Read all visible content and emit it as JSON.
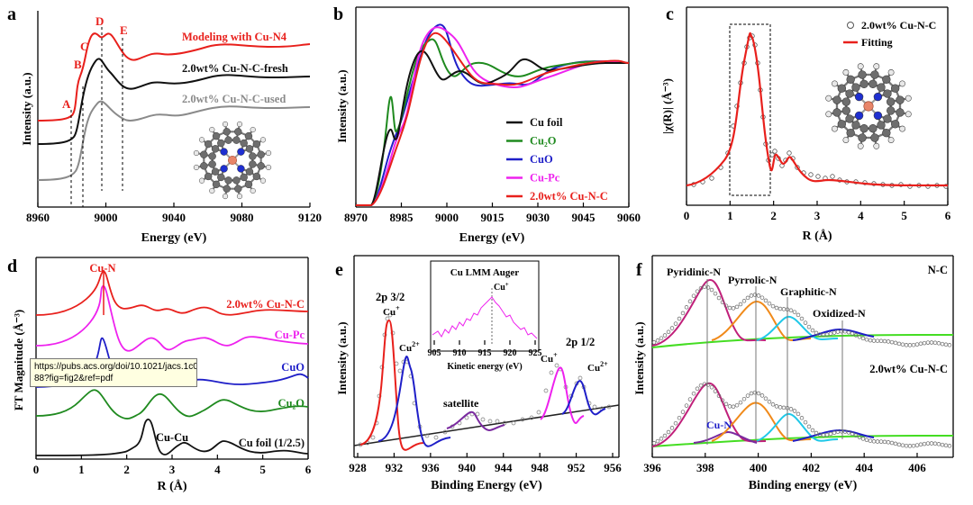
{
  "colors": {
    "red": "#e8201c",
    "black": "#111111",
    "gray": "#808080",
    "green": "#1f8a1f",
    "blue": "#1f1fc8",
    "magenta": "#ee22ee",
    "orange": "#f08a1a",
    "cyan": "#20c8e8",
    "lime": "#44dd22",
    "purple": "#7a2aa0",
    "fitPink": "#c0207a"
  },
  "tooltip": {
    "line1": "https://pubs.acs.org/doi/10.1021/jacs.1c037",
    "line2": "88?fig=fig2&ref=pdf"
  },
  "chart_data": [
    {
      "panel": "a",
      "type": "line",
      "xlabel": "Energy (eV)",
      "ylabel": "Intensity (a.u.)",
      "xlim": [
        8960,
        9120
      ],
      "xticks": [
        "8960",
        "9000",
        "9040",
        "9080",
        "9120"
      ],
      "series": [
        {
          "name": "Modeling with Cu-N4",
          "color": "red"
        },
        {
          "name": "2.0wt% Cu-N-C-fresh",
          "color": "black"
        },
        {
          "name": "2.0wt% Cu-N-C-used",
          "color": "gray"
        }
      ],
      "feature_labels": [
        "A",
        "B",
        "C",
        "D",
        "E"
      ],
      "feature_energies": [
        8979,
        8986,
        8991,
        8997,
        9010
      ]
    },
    {
      "panel": "b",
      "type": "line",
      "xlabel": "Energy (eV)",
      "ylabel": "Intensity (a.u.)",
      "xlim": [
        8970,
        9060
      ],
      "xticks": [
        "8970",
        "8985",
        "9000",
        "9015",
        "9030",
        "9045",
        "9060"
      ],
      "legend": [
        "Cu foil",
        "Cu₂O",
        "CuO",
        "Cu-Pc",
        "2.0wt% Cu-N-C"
      ],
      "series_colors": [
        "black",
        "green",
        "blue",
        "magenta",
        "red"
      ]
    },
    {
      "panel": "c",
      "type": "line",
      "xlabel": "R (Å)",
      "ylabel": "|χ(R)| (Å⁻³)",
      "xlim": [
        0,
        6
      ],
      "xticks": [
        "0",
        "1",
        "2",
        "3",
        "4",
        "5",
        "6"
      ],
      "legend": [
        "2.0wt% Cu-N-C",
        "Fitting"
      ],
      "peak_r": 1.5,
      "fit_window": [
        1.0,
        1.9
      ]
    },
    {
      "panel": "d",
      "type": "line",
      "xlabel": "R (Å)",
      "ylabel": "FT Magnitude (Å⁻³)",
      "xlim": [
        0,
        6
      ],
      "xticks": [
        "0",
        "1",
        "2",
        "3",
        "4",
        "5",
        "6"
      ],
      "series": [
        "2.0wt% Cu-N-C",
        "Cu-Pc",
        "CuO",
        "Cu₂O",
        "Cu foil (1/2.5)"
      ],
      "annotations": [
        "Cu-N",
        "Cu-Cu"
      ],
      "cu_n_r": 1.5,
      "cu_cu_r": 2.25
    },
    {
      "panel": "e",
      "type": "line",
      "xlabel": "Binding Energy (eV)",
      "ylabel": "Intensity (a.u.)",
      "xlim": [
        928,
        958
      ],
      "xticks": [
        "928",
        "932",
        "936",
        "940",
        "944",
        "948",
        "952",
        "956"
      ],
      "labels": [
        "2p 3/2",
        "2p 1/2",
        "satellite"
      ],
      "peaks_eV": [
        932.2,
        934.5,
        951.9,
        954.3
      ],
      "inset": {
        "title": "Cu LMM Auger",
        "xlabel": "Kinetic energy (eV)",
        "xticks": [
          "905",
          "910",
          "915",
          "920",
          "925"
        ],
        "peak": 916
      }
    },
    {
      "panel": "f",
      "type": "line",
      "xlabel": "Binding energy (eV)",
      "ylabel": "Intensity (a.u.)",
      "xlim": [
        396,
        407
      ],
      "xticks": [
        "396",
        "398",
        "400",
        "402",
        "404",
        "406"
      ],
      "top_label": "N-C",
      "bottom_label": "2.0wt% Cu-N-C",
      "component_labels": [
        "Pyridinic-N",
        "Pyrrolic-N",
        "Graphitic-N",
        "Oxidized-N",
        "Cu-N"
      ],
      "peaks_eV": [
        398.0,
        399.8,
        401.0,
        403.0,
        398.8
      ]
    }
  ]
}
